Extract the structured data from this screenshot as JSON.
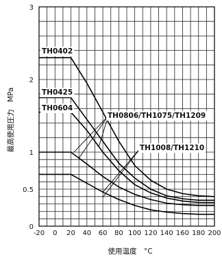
{
  "chart_data": {
    "type": "line",
    "title": "",
    "xlabel": "使用温度　°C",
    "ylabel": "最高使用圧力　MPa",
    "xlim": [
      -20,
      200
    ],
    "ylim": [
      0,
      3
    ],
    "x_ticks": [
      "-20",
      "0",
      "20",
      "40",
      "60",
      "80",
      "100",
      "120",
      "140",
      "160",
      "180",
      "200"
    ],
    "y_ticks": [
      "0",
      "0.5",
      "1",
      "2",
      "3"
    ],
    "grid": true,
    "series": [
      {
        "name": "TH0402",
        "x": [
          -20,
          20,
          40,
          60,
          80,
          100,
          120,
          140,
          160,
          180,
          200
        ],
        "y": [
          2.3,
          2.3,
          1.95,
          1.55,
          1.15,
          0.82,
          0.62,
          0.5,
          0.44,
          0.41,
          0.4
        ]
      },
      {
        "name": "TH0425",
        "x": [
          -20,
          20,
          40,
          60,
          80,
          100,
          120,
          140,
          160,
          180,
          200
        ],
        "y": [
          1.75,
          1.75,
          1.45,
          1.15,
          0.85,
          0.65,
          0.5,
          0.41,
          0.37,
          0.35,
          0.35
        ]
      },
      {
        "name": "TH0604",
        "x": [
          -20,
          20,
          40,
          60,
          80,
          100,
          120,
          140,
          160,
          180,
          200
        ],
        "y": [
          1.55,
          1.55,
          1.3,
          1.0,
          0.75,
          0.56,
          0.45,
          0.38,
          0.34,
          0.32,
          0.32
        ]
      },
      {
        "name": "TH0806/TH1075/TH1209",
        "x": [
          -20,
          20,
          40,
          60,
          80,
          100,
          120,
          140,
          160,
          180,
          200
        ],
        "y": [
          1.0,
          1.0,
          0.84,
          0.67,
          0.53,
          0.43,
          0.36,
          0.31,
          0.29,
          0.28,
          0.28
        ]
      },
      {
        "name": "TH1008/TH1210",
        "x": [
          -20,
          20,
          40,
          60,
          80,
          100,
          120,
          140,
          160,
          180,
          200
        ],
        "y": [
          0.7,
          0.7,
          0.58,
          0.46,
          0.36,
          0.28,
          0.22,
          0.19,
          0.17,
          0.16,
          0.16
        ]
      }
    ]
  }
}
